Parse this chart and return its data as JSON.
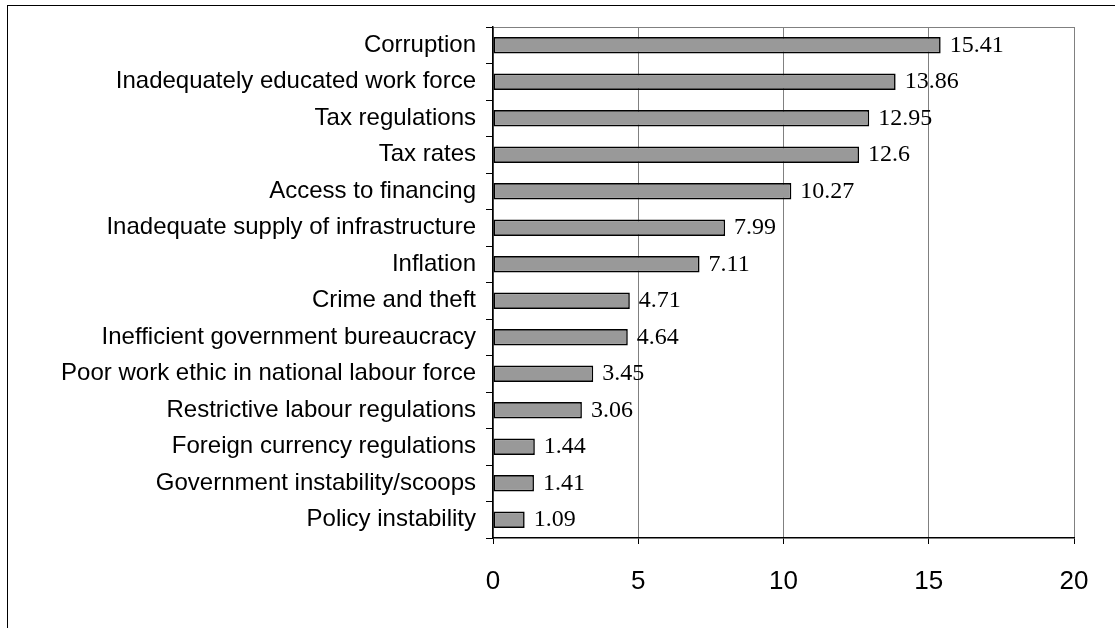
{
  "chart_data": {
    "type": "bar",
    "orientation": "horizontal",
    "categories": [
      "Corruption",
      "Inadequately educated work force",
      "Tax regulations",
      "Tax rates",
      "Access to financing",
      "Inadequate supply of infrastructure",
      "Inflation",
      "Crime and theft",
      "Inefficient government bureaucracy",
      "Poor work ethic in national labour force",
      "Restrictive labour regulations",
      "Foreign currency regulations",
      "Government instability/scoops",
      "Policy instability"
    ],
    "values": [
      15.41,
      13.86,
      12.95,
      12.6,
      10.27,
      7.99,
      7.11,
      4.71,
      4.64,
      3.45,
      3.06,
      1.44,
      1.41,
      1.09
    ],
    "color": "#999999",
    "xlim": [
      0,
      20
    ],
    "xticks": [
      0,
      5,
      10,
      15,
      20
    ],
    "grid": "x",
    "data_labels": true
  }
}
